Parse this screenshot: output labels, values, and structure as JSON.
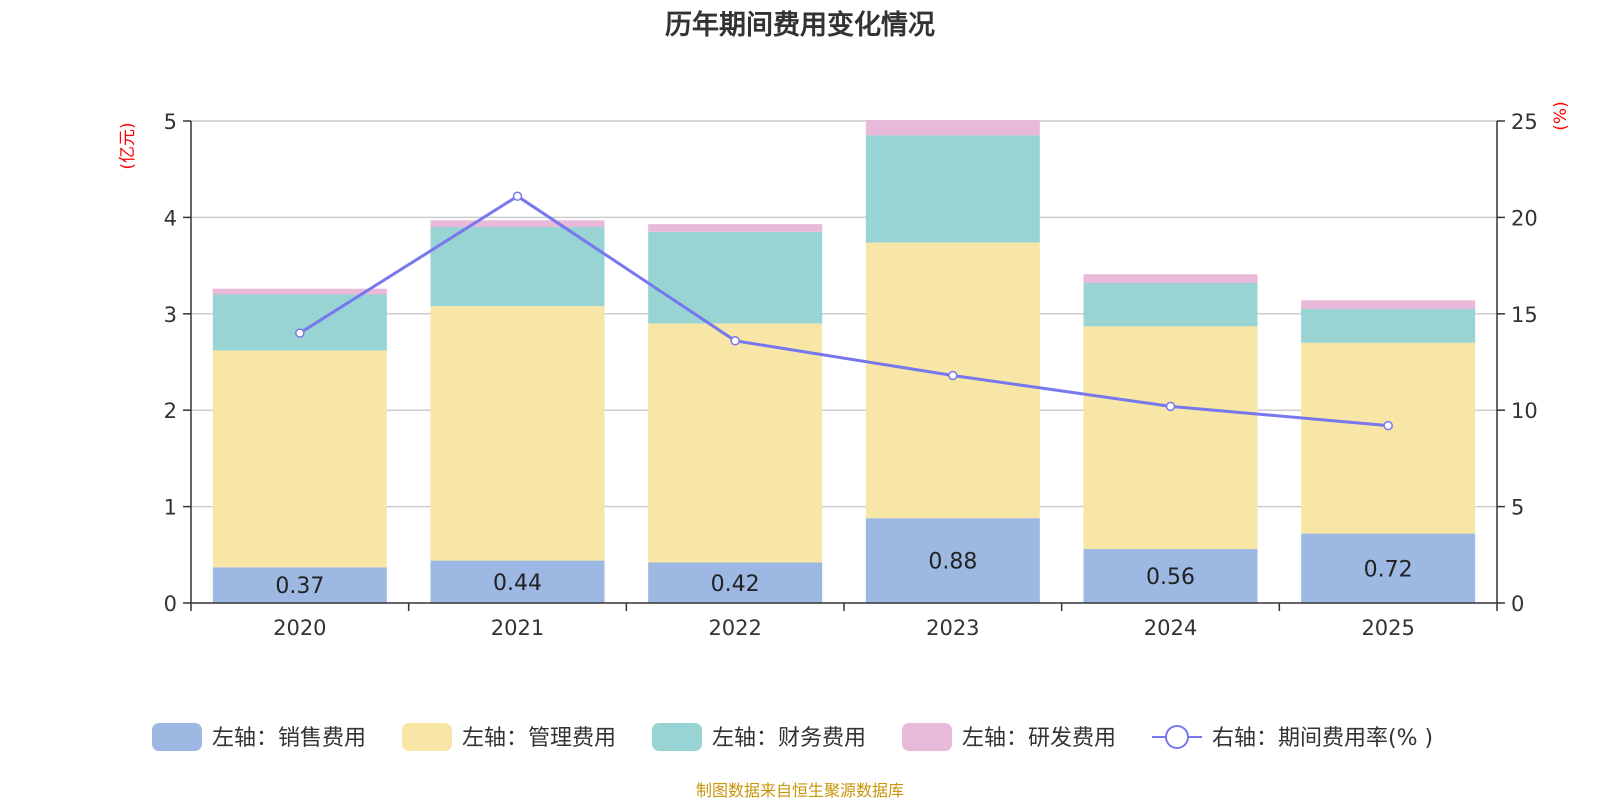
{
  "chart_data": {
    "type": "bar",
    "stacked": true,
    "title": "历年期间费用变化情况",
    "categories": [
      "2020",
      "2021",
      "2022",
      "2023",
      "2024",
      "2025"
    ],
    "left_axis": {
      "unit_label": "(亿元)",
      "ylim": [
        0,
        5
      ],
      "ticks": [
        "0",
        "1",
        "2",
        "3",
        "4",
        "5"
      ]
    },
    "right_axis": {
      "unit_label": "(%)",
      "ylim": [
        0,
        25
      ],
      "ticks": [
        "0",
        "5",
        "10",
        "15",
        "20",
        "25"
      ]
    },
    "grid": true,
    "series": [
      {
        "name": "左轴：销售费用",
        "axis": "left",
        "color": "#9db8e2",
        "values": [
          0.37,
          0.44,
          0.42,
          0.88,
          0.56,
          0.72
        ],
        "labels": [
          "0.37",
          "0.44",
          "0.42",
          "0.88",
          "0.56",
          "0.72"
        ]
      },
      {
        "name": "左轴：管理费用",
        "axis": "left",
        "color": "#f7e6a6",
        "values": [
          2.25,
          2.64,
          2.48,
          2.86,
          2.31,
          1.98
        ]
      },
      {
        "name": "左轴：财务费用",
        "axis": "left",
        "color": "#98d4d4",
        "values": [
          0.58,
          0.82,
          0.95,
          1.11,
          0.45,
          0.35
        ]
      },
      {
        "name": "左轴：研发费用",
        "axis": "left",
        "color": "#e8b9d9",
        "values": [
          0.06,
          0.07,
          0.08,
          0.16,
          0.09,
          0.09
        ]
      },
      {
        "name": "右轴：期间费用率(% )",
        "axis": "right",
        "type": "line",
        "color": "#7777ee",
        "values": [
          14.0,
          21.1,
          13.6,
          11.8,
          10.2,
          9.2
        ]
      }
    ],
    "legend_position": "bottom",
    "source": "制图数据来自恒生聚源数据库"
  }
}
